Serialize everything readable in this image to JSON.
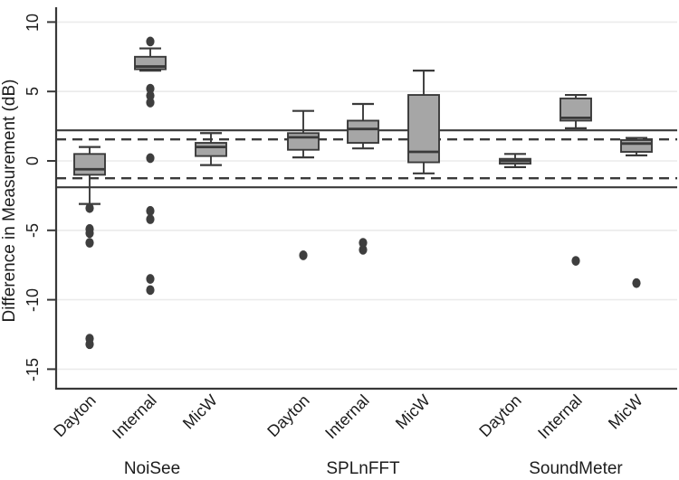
{
  "chart_data": {
    "type": "box",
    "title": "",
    "xlabel": "",
    "ylabel": "Difference in Measurement (dB)",
    "ytick_labels": [
      "10",
      "5",
      "0",
      "-5",
      "-10",
      "-15"
    ],
    "ytick_values": [
      10,
      5,
      0,
      -5,
      -10,
      -15
    ],
    "ylim": [
      -16.5,
      11.1
    ],
    "grid": "horizontal",
    "legend": "none",
    "reference_lines": {
      "solid": [
        2.2,
        -1.9
      ],
      "dashed": [
        1.55,
        -1.25
      ]
    },
    "groups": [
      {
        "label": "NoiSee",
        "boxes": [
          {
            "mic": "Dayton",
            "low": -3.1,
            "q1": -1.0,
            "median": -0.6,
            "q3": 0.5,
            "high": 1.0,
            "outliers": [
              -3.4,
              -4.9,
              -5.2,
              -5.9,
              -12.8,
              -13.2
            ]
          },
          {
            "mic": "Internal",
            "low": 6.5,
            "q1": 6.6,
            "median": 6.8,
            "q3": 7.5,
            "high": 8.1,
            "outliers": [
              8.6,
              5.2,
              4.7,
              4.2,
              0.2,
              -3.6,
              -4.2,
              -8.5,
              -9.3
            ]
          },
          {
            "mic": "MicW",
            "low": -0.3,
            "q1": 0.35,
            "median": 1.0,
            "q3": 1.3,
            "high": 2.0,
            "outliers": []
          }
        ]
      },
      {
        "label": "SPLnFFT",
        "boxes": [
          {
            "mic": "Dayton",
            "low": 0.25,
            "q1": 0.8,
            "median": 1.7,
            "q3": 2.0,
            "high": 3.6,
            "outliers": [
              -6.8
            ]
          },
          {
            "mic": "Internal",
            "low": 0.9,
            "q1": 1.3,
            "median": 2.3,
            "q3": 2.9,
            "high": 4.1,
            "outliers": [
              -5.9,
              -6.4
            ]
          },
          {
            "mic": "MicW",
            "low": -0.9,
            "q1": -0.1,
            "median": 0.65,
            "q3": 4.75,
            "high": 6.5,
            "outliers": []
          }
        ]
      },
      {
        "label": "SoundMeter",
        "boxes": [
          {
            "mic": "Dayton",
            "low": -0.45,
            "q1": -0.2,
            "median": 0.0,
            "q3": 0.15,
            "high": 0.5,
            "outliers": []
          },
          {
            "mic": "Internal",
            "low": 2.35,
            "q1": 2.9,
            "median": 3.1,
            "q3": 4.5,
            "high": 4.75,
            "outliers": [
              -7.2
            ]
          },
          {
            "mic": "MicW",
            "low": 0.4,
            "q1": 0.65,
            "median": 1.25,
            "q3": 1.5,
            "high": 1.65,
            "outliers": [
              -8.8
            ]
          }
        ]
      }
    ],
    "colors": {
      "box_fill": "#a6a6a6",
      "line": "#3a3a3a",
      "axis": "#383838",
      "gridline": "#ebebeb",
      "outlier": "#3e3e3e",
      "background": "#ffffff"
    }
  }
}
